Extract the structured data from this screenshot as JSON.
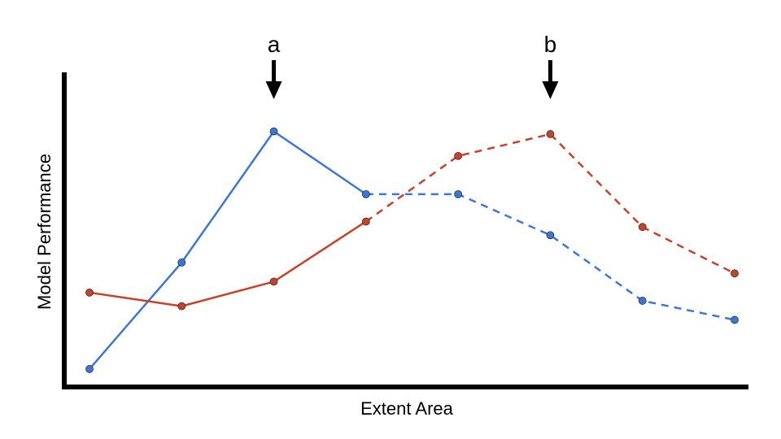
{
  "chart_data": {
    "type": "line",
    "title": "",
    "xlabel": "Extent Area",
    "ylabel": "Model Performance",
    "x": [
      1,
      2,
      3,
      4,
      5,
      6,
      7,
      8
    ],
    "ylim": [
      0,
      100
    ],
    "xlim": [
      1,
      8.2
    ],
    "grid": false,
    "series": [
      {
        "name": "blue",
        "color": "#3b77d6",
        "values": [
          3,
          42,
          90,
          67,
          67,
          52,
          28,
          21
        ],
        "solid_until_index": 3
      },
      {
        "name": "red",
        "color": "#c8412b",
        "values": [
          31,
          26,
          35,
          57,
          81,
          89,
          55,
          38
        ],
        "solid_until_index": 3
      }
    ],
    "annotations": [
      {
        "label": "a",
        "x": 3,
        "style": "down-arrow"
      },
      {
        "label": "b",
        "x": 6,
        "style": "down-arrow"
      }
    ]
  }
}
